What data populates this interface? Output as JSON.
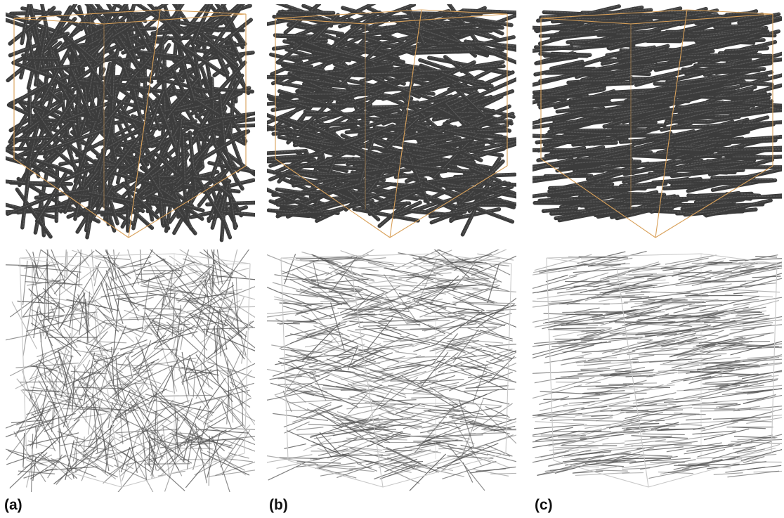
{
  "figure": {
    "panels": [
      {
        "id": "a",
        "label": "(a)",
        "orientation": "random"
      },
      {
        "id": "b",
        "label": "(b)",
        "orientation": "partially-aligned"
      },
      {
        "id": "c",
        "label": "(c)",
        "orientation": "aligned"
      }
    ],
    "colors": {
      "fiber_dark": "#3c3c3c",
      "fiber_highlight": "#6e6e6e",
      "frame_orange": "#d9a15a",
      "frame_gray": "#c8c8c8",
      "skeleton": "#555555"
    }
  }
}
